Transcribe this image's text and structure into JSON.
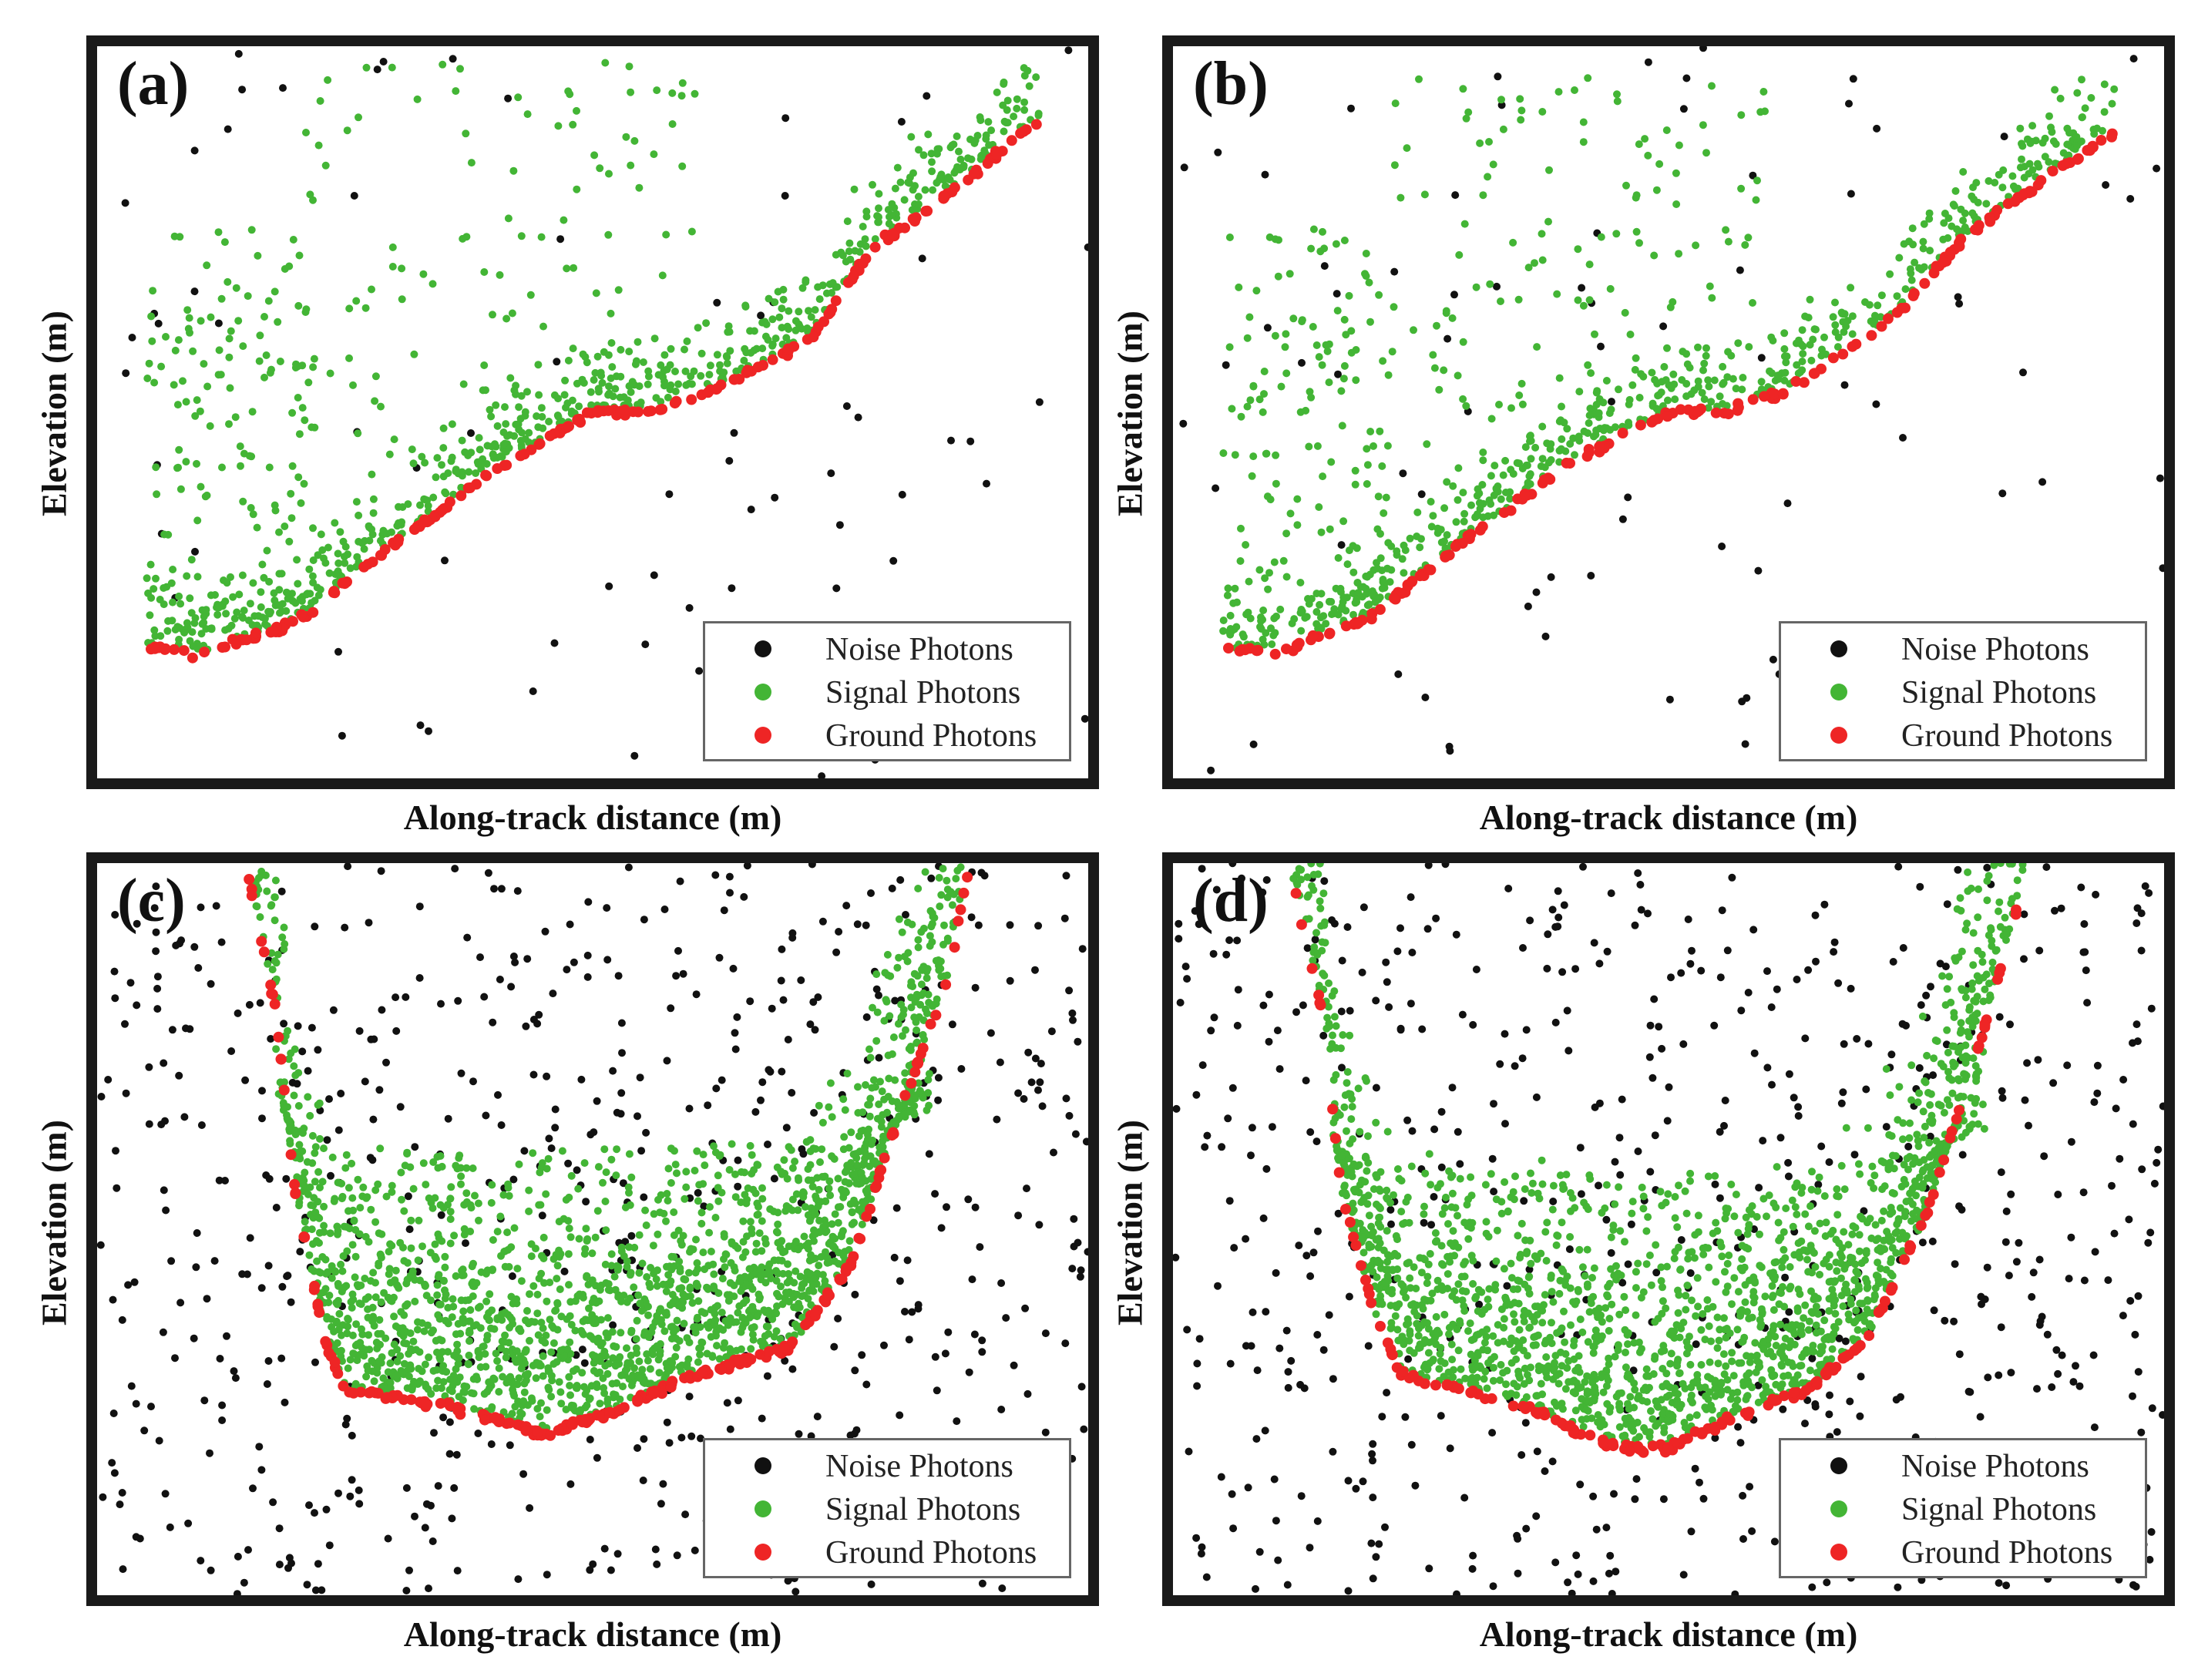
{
  "colors": {
    "noise": "#111111",
    "signal": "#43b535",
    "ground": "#ee2525"
  },
  "legend": [
    {
      "key": "noise",
      "label": "Noise Photons"
    },
    {
      "key": "signal",
      "label": "Signal Photons"
    },
    {
      "key": "ground",
      "label": "Ground Photons"
    }
  ],
  "chart_data": [
    {
      "type": "scatter",
      "panel_label": "(a)",
      "xlabel": "Along-track distance (m)",
      "ylabel": "Elevation (m)",
      "xlim": [
        0,
        1
      ],
      "ylim": [
        0,
        1
      ],
      "grid": false,
      "legend_position": "bottom-right",
      "series_names": [
        "Noise Photons",
        "Signal Photons",
        "Ground Photons"
      ],
      "ground_profile": [
        [
          0.05,
          0.18
        ],
        [
          0.1,
          0.17
        ],
        [
          0.2,
          0.21
        ],
        [
          0.3,
          0.32
        ],
        [
          0.4,
          0.42
        ],
        [
          0.5,
          0.5
        ],
        [
          0.56,
          0.5
        ],
        [
          0.62,
          0.53
        ],
        [
          0.72,
          0.6
        ],
        [
          0.78,
          0.72
        ],
        [
          0.86,
          0.8
        ],
        [
          0.95,
          0.9
        ]
      ],
      "canopy_regions": [
        [
          0.05,
          0.22,
          0.25,
          0.75
        ],
        [
          0.2,
          0.62,
          0.35,
          0.98
        ]
      ],
      "signal_count": 850,
      "ground_count": 200,
      "noise_count": 80
    },
    {
      "type": "scatter",
      "panel_label": "(b)",
      "xlabel": "Along-track distance (m)",
      "ylabel": "Elevation (m)",
      "xlim": [
        0,
        1
      ],
      "ylim": [
        0,
        1
      ],
      "grid": false,
      "legend_position": "bottom-right",
      "series_names": [
        "Noise Photons",
        "Signal Photons",
        "Ground Photons"
      ],
      "ground_profile": [
        [
          0.05,
          0.18
        ],
        [
          0.1,
          0.17
        ],
        [
          0.2,
          0.22
        ],
        [
          0.3,
          0.33
        ],
        [
          0.4,
          0.43
        ],
        [
          0.5,
          0.5
        ],
        [
          0.56,
          0.5
        ],
        [
          0.62,
          0.53
        ],
        [
          0.72,
          0.62
        ],
        [
          0.8,
          0.74
        ],
        [
          0.88,
          0.82
        ],
        [
          0.95,
          0.88
        ]
      ],
      "canopy_regions": [
        [
          0.05,
          0.22,
          0.25,
          0.75
        ],
        [
          0.22,
          0.6,
          0.35,
          0.96
        ]
      ],
      "signal_count": 800,
      "ground_count": 170,
      "noise_count": 90
    },
    {
      "type": "scatter",
      "panel_label": "(c)",
      "xlabel": "Along-track distance (m)",
      "ylabel": "Elevation (m)",
      "xlim": [
        0,
        1
      ],
      "ylim": [
        0,
        1
      ],
      "grid": false,
      "legend_position": "bottom-right",
      "series_names": [
        "Noise Photons",
        "Signal Photons",
        "Ground Photons"
      ],
      "ground_profile": [
        [
          0.15,
          1.0
        ],
        [
          0.18,
          0.8
        ],
        [
          0.2,
          0.55
        ],
        [
          0.23,
          0.35
        ],
        [
          0.25,
          0.28
        ],
        [
          0.35,
          0.26
        ],
        [
          0.45,
          0.22
        ],
        [
          0.52,
          0.25
        ],
        [
          0.6,
          0.3
        ],
        [
          0.7,
          0.34
        ],
        [
          0.76,
          0.45
        ],
        [
          0.8,
          0.62
        ],
        [
          0.86,
          0.85
        ],
        [
          0.88,
          1.0
        ]
      ],
      "canopy_regions": [
        [
          0.18,
          0.84,
          0.28,
          0.65
        ]
      ],
      "signal_count": 2000,
      "ground_count": 230,
      "noise_count": 650
    },
    {
      "type": "scatter",
      "panel_label": "(d)",
      "xlabel": "Along-track distance (m)",
      "ylabel": "Elevation (m)",
      "xlim": [
        0,
        1
      ],
      "ylim": [
        0,
        1
      ],
      "grid": false,
      "legend_position": "bottom-right",
      "series_names": [
        "Noise Photons",
        "Signal Photons",
        "Ground Photons"
      ],
      "ground_profile": [
        [
          0.12,
          0.98
        ],
        [
          0.15,
          0.8
        ],
        [
          0.17,
          0.55
        ],
        [
          0.2,
          0.4
        ],
        [
          0.23,
          0.3
        ],
        [
          0.35,
          0.26
        ],
        [
          0.45,
          0.2
        ],
        [
          0.5,
          0.2
        ],
        [
          0.56,
          0.24
        ],
        [
          0.64,
          0.28
        ],
        [
          0.7,
          0.35
        ],
        [
          0.76,
          0.52
        ],
        [
          0.82,
          0.78
        ],
        [
          0.86,
          0.98
        ]
      ],
      "canopy_regions": [
        [
          0.16,
          0.82,
          0.26,
          0.62
        ]
      ],
      "signal_count": 1900,
      "ground_count": 170,
      "noise_count": 650
    }
  ]
}
